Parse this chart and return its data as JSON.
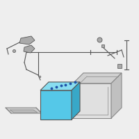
{
  "background_color": "#eeeeee",
  "fig_bg": "#eeeeee",
  "battery_color": "#55c8e8",
  "battery_top_color": "#88ddf0",
  "battery_side_color": "#38a8c8",
  "tray_color": "#cccccc",
  "tray_edge": "#888888",
  "box_face_color": "#e0e0e0",
  "box_top_color": "#d0d0d0",
  "box_side_color": "#c0c0c0",
  "box_edge": "#888888",
  "line_color": "#555555",
  "part_color": "#aaaaaa",
  "part_edge": "#666666"
}
